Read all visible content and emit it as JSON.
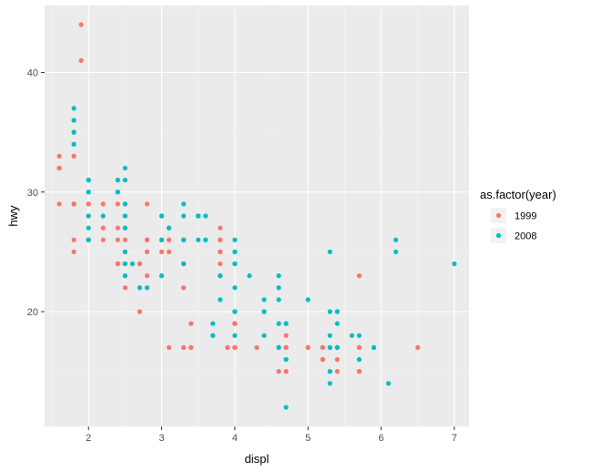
{
  "chart_data": {
    "type": "scatter",
    "xlabel": "displ",
    "ylabel": "hwy",
    "xlim": [
      1.4,
      7.2
    ],
    "ylim": [
      10.4,
      45.6
    ],
    "x_ticks": [
      2,
      3,
      4,
      5,
      6,
      7
    ],
    "y_ticks": [
      20,
      30,
      40
    ],
    "grid": true,
    "legend": {
      "title": "as.factor(year)",
      "position": "right"
    },
    "colors": {
      "panel": "#ebebeb",
      "grid_major": "#ffffff",
      "grid_minor": "#f5f5f5"
    },
    "series": [
      {
        "name": "1999",
        "color": "#F8766D",
        "points": [
          [
            1.8,
            29
          ],
          [
            1.8,
            29
          ],
          [
            2.8,
            26
          ],
          [
            2.8,
            26
          ],
          [
            1.8,
            26
          ],
          [
            1.8,
            25
          ],
          [
            2.8,
            25
          ],
          [
            2.8,
            25
          ],
          [
            3.1,
            17
          ],
          [
            5.7,
            17
          ],
          [
            5.7,
            15
          ],
          [
            5.7,
            15
          ],
          [
            2.4,
            24
          ],
          [
            2.4,
            24
          ],
          [
            3.1,
            25
          ],
          [
            3.8,
            25
          ],
          [
            3.8,
            23
          ],
          [
            3.9,
            17
          ],
          [
            4.7,
            17
          ],
          [
            4.7,
            17
          ],
          [
            4.7,
            17
          ],
          [
            5.2,
            16
          ],
          [
            5.2,
            16
          ],
          [
            5.9,
            17
          ],
          [
            4.7,
            18
          ],
          [
            5.2,
            17
          ],
          [
            5.2,
            17
          ],
          [
            3.9,
            17
          ],
          [
            3.9,
            17
          ],
          [
            4.6,
            17
          ],
          [
            4.6,
            17
          ],
          [
            5,
            17
          ],
          [
            5,
            17
          ],
          [
            5.4,
            17
          ],
          [
            5.4,
            15
          ],
          [
            4,
            19
          ],
          [
            4,
            19
          ],
          [
            4,
            17
          ],
          [
            4,
            17
          ],
          [
            4.6,
            17
          ],
          [
            4.6,
            15
          ],
          [
            5.4,
            16
          ],
          [
            3.8,
            27
          ],
          [
            3.8,
            26
          ],
          [
            3.8,
            25
          ],
          [
            3.8,
            24
          ],
          [
            3.1,
            27
          ],
          [
            3.1,
            26
          ],
          [
            1.8,
            29
          ],
          [
            1.8,
            29
          ],
          [
            2,
            28
          ],
          [
            2,
            29
          ],
          [
            2,
            26
          ],
          [
            2.8,
            26
          ],
          [
            3.1,
            26
          ],
          [
            4.7,
            16
          ],
          [
            4.7,
            15
          ],
          [
            5.7,
            17
          ],
          [
            2.4,
            24
          ],
          [
            2.4,
            24
          ],
          [
            2.5,
            27
          ],
          [
            3,
            25
          ],
          [
            2.5,
            22
          ],
          [
            3.3,
            22
          ],
          [
            3.3,
            24
          ],
          [
            3.3,
            24
          ],
          [
            3.3,
            17
          ],
          [
            3.3,
            17
          ],
          [
            4,
            17
          ],
          [
            4,
            17
          ],
          [
            4,
            19
          ],
          [
            4.3,
            17
          ],
          [
            1.6,
            32
          ],
          [
            1.6,
            33
          ],
          [
            1.6,
            32
          ],
          [
            1.6,
            29
          ],
          [
            1.6,
            32
          ],
          [
            1.8,
            34
          ],
          [
            1.8,
            36
          ],
          [
            1.8,
            36
          ],
          [
            2.4,
            29
          ],
          [
            2.4,
            26
          ],
          [
            2.4,
            27
          ],
          [
            2.4,
            30
          ],
          [
            3.8,
            25
          ],
          [
            3.8,
            26
          ],
          [
            2.5,
            29
          ],
          [
            2.5,
            26
          ],
          [
            3,
            26
          ],
          [
            3.3,
            26
          ],
          [
            3.3,
            24
          ],
          [
            2.7,
            20
          ],
          [
            3.4,
            17
          ],
          [
            3.4,
            19
          ],
          [
            4,
            17
          ],
          [
            4.7,
            17
          ],
          [
            1.9,
            44
          ],
          [
            1.9,
            41
          ],
          [
            2,
            29
          ],
          [
            2,
            26
          ],
          [
            2.8,
            29
          ],
          [
            2.8,
            23
          ],
          [
            2.2,
            26
          ],
          [
            2.2,
            29
          ],
          [
            2.5,
            24
          ],
          [
            2.5,
            24
          ],
          [
            2.5,
            25
          ],
          [
            2.7,
            24
          ],
          [
            2.7,
            24
          ],
          [
            2.7,
            22
          ],
          [
            2.7,
            20
          ],
          [
            3.4,
            17
          ],
          [
            4.7,
            15
          ],
          [
            5.7,
            23
          ],
          [
            6.5,
            17
          ],
          [
            3,
            26
          ],
          [
            3,
            28
          ],
          [
            2.8,
            26
          ],
          [
            2.2,
            27
          ],
          [
            1.8,
            33
          ],
          [
            1.8,
            33
          ]
        ]
      },
      {
        "name": "2008",
        "color": "#00BFC4",
        "points": [
          [
            2,
            31
          ],
          [
            2,
            30
          ],
          [
            2,
            28
          ],
          [
            2,
            26
          ],
          [
            3.1,
            27
          ],
          [
            3.6,
            26
          ],
          [
            4.2,
            23
          ],
          [
            4.4,
            18
          ],
          [
            4.6,
            23
          ],
          [
            5.3,
            25
          ],
          [
            5.3,
            15
          ],
          [
            5.7,
            16
          ],
          [
            6.2,
            26
          ],
          [
            6.2,
            25
          ],
          [
            7,
            24
          ],
          [
            5.3,
            14
          ],
          [
            5.3,
            15
          ],
          [
            3.3,
            24
          ],
          [
            3.3,
            28
          ],
          [
            3.8,
            23
          ],
          [
            4,
            22
          ],
          [
            4,
            20
          ],
          [
            4.4,
            20
          ],
          [
            5.4,
            17
          ],
          [
            4.6,
            22
          ],
          [
            5.3,
            20
          ],
          [
            4.7,
            19
          ],
          [
            4,
            18
          ],
          [
            5.4,
            17
          ],
          [
            5.4,
            20
          ],
          [
            3.7,
            19
          ],
          [
            3.7,
            18
          ],
          [
            4.7,
            19
          ],
          [
            4.7,
            12
          ],
          [
            5.7,
            16
          ],
          [
            6.1,
            14
          ],
          [
            4.6,
            19
          ],
          [
            5.7,
            18
          ],
          [
            4,
            20
          ],
          [
            3.5,
            28
          ],
          [
            3.8,
            23
          ],
          [
            4,
            24
          ],
          [
            4.6,
            21
          ],
          [
            5.4,
            20
          ],
          [
            4.4,
            21
          ],
          [
            2.4,
            31
          ],
          [
            2.4,
            30
          ],
          [
            3.5,
            28
          ],
          [
            3.3,
            29
          ],
          [
            5.4,
            19
          ],
          [
            4.6,
            19
          ],
          [
            5,
            21
          ],
          [
            5.6,
            18
          ],
          [
            5.9,
            17
          ],
          [
            4.4,
            20
          ],
          [
            5.3,
            18
          ],
          [
            3.8,
            21
          ],
          [
            3,
            28
          ],
          [
            3.6,
            28
          ],
          [
            4,
            26
          ],
          [
            4,
            25
          ],
          [
            3,
            26
          ],
          [
            2.5,
            31
          ],
          [
            2.5,
            32
          ],
          [
            2.5,
            28
          ],
          [
            2.5,
            27
          ],
          [
            2.5,
            25
          ],
          [
            2.5,
            24
          ],
          [
            2.5,
            23
          ],
          [
            2.5,
            23
          ],
          [
            3,
            28
          ],
          [
            3.5,
            28
          ],
          [
            2.6,
            24
          ],
          [
            2.7,
            22
          ],
          [
            2.8,
            22
          ],
          [
            3.3,
            26
          ],
          [
            4,
            25
          ],
          [
            4,
            24
          ],
          [
            1.8,
            37
          ],
          [
            1.8,
            35
          ],
          [
            1.8,
            36
          ],
          [
            1.8,
            35
          ],
          [
            1.8,
            34
          ],
          [
            2,
            31
          ],
          [
            2,
            30
          ],
          [
            2,
            27
          ],
          [
            2,
            26
          ],
          [
            2.5,
            29
          ],
          [
            2.5,
            28
          ],
          [
            3.5,
            26
          ],
          [
            4.6,
            17
          ],
          [
            5.4,
            17
          ],
          [
            4.7,
            16
          ],
          [
            5.3,
            17
          ],
          [
            5.3,
            17
          ],
          [
            2.4,
            31
          ],
          [
            2.4,
            30
          ],
          [
            3,
            23
          ],
          [
            3,
            23
          ],
          [
            3.3,
            26
          ],
          [
            2.2,
            28
          ],
          [
            3.6,
            26
          ]
        ]
      }
    ]
  }
}
